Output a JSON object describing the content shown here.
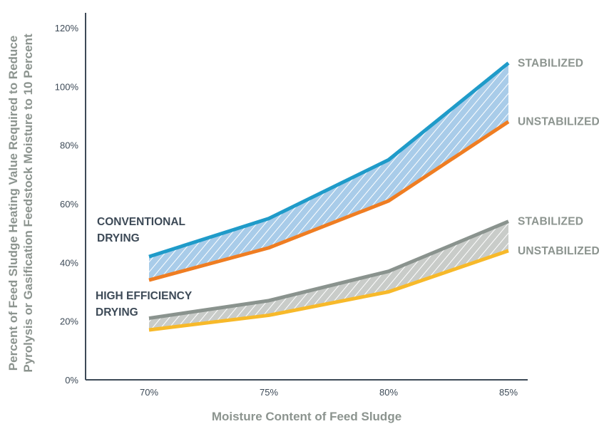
{
  "chart_data": {
    "type": "area",
    "title": "",
    "xlabel": "Moisture Content of Feed Sludge",
    "ylabel_lines": [
      "Percent of Feed Sludge Heating Value Required to Reduce",
      "Pyrolysis or Gasification Feedstock Moisture to 10 Percent"
    ],
    "categories": [
      "70%",
      "75%",
      "80%",
      "85%"
    ],
    "ylim": [
      0,
      120
    ],
    "yticks": [
      0,
      20,
      40,
      60,
      80,
      100,
      120
    ],
    "ytick_labels": [
      "0%",
      "20%",
      "40%",
      "60%",
      "80%",
      "100%",
      "120%"
    ],
    "grid": false,
    "groups": [
      {
        "label_lines": [
          "CONVENTIONAL",
          "DRYING"
        ],
        "band_fill": "#a9cce9",
        "series": [
          {
            "name": "STABILIZED",
            "values": [
              42,
              55,
              75,
              108
            ],
            "color": "#1f9bc9"
          },
          {
            "name": "UNSTABILIZED",
            "values": [
              34,
              45,
              61,
              88
            ],
            "color": "#ef7d22"
          }
        ]
      },
      {
        "label_lines": [
          "HIGH EFFICIENCY",
          "DRYING"
        ],
        "band_fill": "#c9ccc9",
        "series": [
          {
            "name": "STABILIZED",
            "values": [
              21,
              27,
              37,
              54
            ],
            "color": "#8a938e"
          },
          {
            "name": "UNSTABILIZED",
            "values": [
              17,
              22,
              30,
              44
            ],
            "color": "#f7b92a"
          }
        ]
      }
    ]
  }
}
